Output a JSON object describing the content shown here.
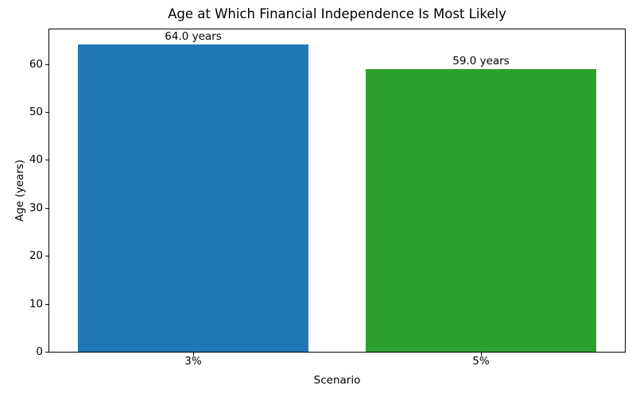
{
  "chart_data": {
    "type": "bar",
    "title": "Age at Which Financial Independence Is Most Likely",
    "xlabel": "Scenario",
    "ylabel": "Age (years)",
    "categories": [
      "3%",
      "5%"
    ],
    "values": [
      64.0,
      59.0
    ],
    "bar_labels": [
      "64.0 years",
      "59.0 years"
    ],
    "bar_colors": [
      "#1f77b4",
      "#2ca02c"
    ],
    "yticks": [
      0,
      10,
      20,
      30,
      40,
      50,
      60
    ],
    "ylim": [
      0,
      67.2
    ],
    "grid": false,
    "legend_position": "none",
    "background_color": "#ffffff",
    "axis_color": "#000000"
  }
}
